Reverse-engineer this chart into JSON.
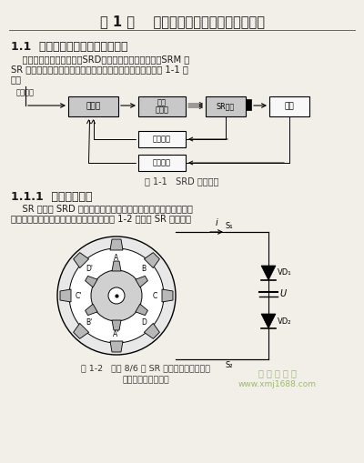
{
  "bg_color": "#f0ede8",
  "page_bg": "#f2efe9",
  "title": "第 1 章    开关磁阻电机的构造和工作原理",
  "section1": "1.1  开关磁阻电机驱动系统的组成",
  "para1": "    开关磁阻电机驱动系统（SRD）主要由开关磁阻电机（SRM 或\nSR 电机）、功率变换器、控制器和检测器四部分组成，如图 1-1 所\n示。",
  "label_gd": "给定速度",
  "box1": "控制器",
  "box2_line1": "功率",
  "box2_line2": "变换器",
  "box3": "SR电机",
  "box4": "负载",
  "box5": "电流检测",
  "box6": "位置检测",
  "fig1_cap": "图 1-1   SRD 基本构成",
  "section2": "1.1.1  开关磁阻电机",
  "para2": "    SR 电机是 SRD 中实现机电能量转换的部件，它的结构和工作原\n理与传统的交直流电机有着很大的差别，图 1-2 为典型 SR 电机的结",
  "fig2_cap1": "图 1-2   四相 8/6 极 SR 电机典型结构原理图",
  "fig2_cap2": "（只画出其中一相）",
  "wm1": "圆 圆 教 程 网",
  "wm2": "www.xmj1688.com",
  "text_color": "#1a1a1a",
  "box_gray": "#c8c8c8",
  "box_white": "#f8f8f8"
}
